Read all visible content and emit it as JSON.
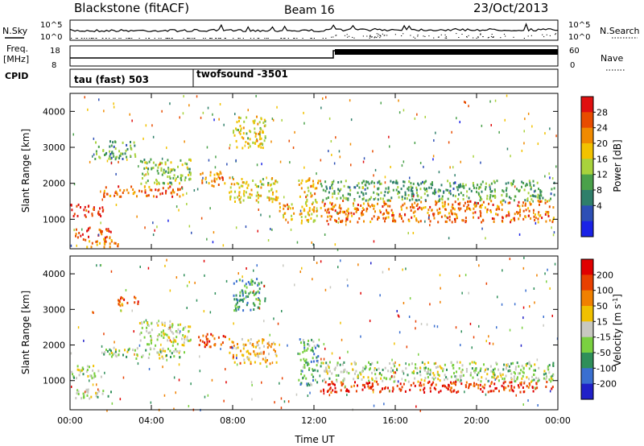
{
  "header": {
    "station": "Blackstone (fitACF)",
    "beam": "Beam 16",
    "date": "23/Oct/2013"
  },
  "params": {
    "left_top": "N.Sky",
    "left_freq_1": "Freq.",
    "left_freq_2": "[MHz]",
    "left_cpid": "CPID",
    "right_top": "N.Search",
    "right_nave": "Nave",
    "noise_ticks_left": [
      "10^5",
      "10^0"
    ],
    "noise_ticks_right": [
      "10^5",
      "10^0"
    ],
    "freq_ticks": [
      "18",
      "8"
    ],
    "nave_ticks": [
      "60",
      "0"
    ]
  },
  "cpid_segments": [
    {
      "label": "tau (fast) 503",
      "start_hour": 0,
      "end_hour": 6
    },
    {
      "label": "twofsound -3501",
      "start_hour": 6,
      "end_hour": 24
    }
  ],
  "chart_data": [
    {
      "type": "heatmap",
      "variable": "Power",
      "ylabel": "Slant Range [km]",
      "y_ticks": [
        1000,
        2000,
        3000,
        4000
      ],
      "ylim": [
        180,
        4500
      ],
      "xlim_hours": [
        0,
        24
      ],
      "colorbar_label": "Power [dB]",
      "colorbar_ticks": [
        "4",
        "8",
        "12",
        "16",
        "20",
        "24",
        "28"
      ],
      "colorbar_colors": [
        "#1a22e6",
        "#2d4fb5",
        "#2f7f6a",
        "#4aa14a",
        "#a8d23c",
        "#f2c200",
        "#f08a00",
        "#e84c00",
        "#e01010"
      ],
      "bands": [
        {
          "x0": 0.0,
          "x1": 1.6,
          "y0": 1100,
          "y1": 1450,
          "v": 0.95
        },
        {
          "x0": 1.6,
          "x1": 5.6,
          "y0": 1650,
          "y1": 1950,
          "v": 0.85
        },
        {
          "x0": 0.2,
          "x1": 2.0,
          "y0": 500,
          "y1": 800,
          "v": 0.9
        },
        {
          "x0": 0.6,
          "x1": 2.6,
          "y0": 250,
          "y1": 480,
          "v": 0.75
        },
        {
          "x0": 6.3,
          "x1": 7.6,
          "y0": 1950,
          "y1": 2350,
          "v": 0.75
        },
        {
          "x0": 7.8,
          "x1": 10.2,
          "y0": 1500,
          "y1": 2200,
          "v": 0.6
        },
        {
          "x0": 8.0,
          "x1": 9.6,
          "y0": 3000,
          "y1": 3900,
          "v": 0.55
        },
        {
          "x0": 10.2,
          "x1": 11.0,
          "y0": 1000,
          "y1": 1500,
          "v": 0.7
        },
        {
          "x0": 11.2,
          "x1": 12.2,
          "y0": 900,
          "y1": 2200,
          "v": 0.65
        },
        {
          "x0": 12.3,
          "x1": 23.8,
          "y0": 950,
          "y1": 1550,
          "v": 0.8
        },
        {
          "x0": 12.3,
          "x1": 23.8,
          "y0": 1550,
          "y1": 2100,
          "v": 0.35
        },
        {
          "x0": 3.4,
          "x1": 5.9,
          "y0": 2000,
          "y1": 2700,
          "v": 0.45
        },
        {
          "x0": 1.2,
          "x1": 3.2,
          "y0": 2700,
          "y1": 3200,
          "v": 0.35
        }
      ]
    },
    {
      "type": "heatmap",
      "variable": "Velocity",
      "ylabel": "Slant Range [km]",
      "xlabel": "Time UT",
      "y_ticks": [
        1000,
        2000,
        3000,
        4000
      ],
      "ylim": [
        180,
        4500
      ],
      "xlim_hours": [
        0,
        24
      ],
      "x_ticks": [
        "00:00",
        "04:00",
        "08:00",
        "12:00",
        "16:00",
        "20:00",
        "00:00"
      ],
      "colorbar_label": "Velocity [m s",
      "colorbar_label_sup": "-1",
      "colorbar_label_end": "]",
      "colorbar_ticks": [
        "200",
        "100",
        "50",
        "15",
        "-15",
        "-50",
        "-100",
        "-200"
      ],
      "colorbar_colors": [
        "#2020c8",
        "#3a6fd0",
        "#2f8f5a",
        "#7ad040",
        "#c8c8c0",
        "#f0c000",
        "#f08000",
        "#e84000",
        "#e00000"
      ],
      "bands": [
        {
          "x0": 0.0,
          "x1": 1.6,
          "y0": 1100,
          "y1": 1450,
          "v": 0.45
        },
        {
          "x0": 1.6,
          "x1": 5.6,
          "y0": 1650,
          "y1": 1950,
          "v": 0.45
        },
        {
          "x0": 0.2,
          "x1": 2.0,
          "y0": 500,
          "y1": 800,
          "v": 0.45
        },
        {
          "x0": 6.3,
          "x1": 7.6,
          "y0": 1950,
          "y1": 2350,
          "v": 0.85
        },
        {
          "x0": 7.8,
          "x1": 10.2,
          "y0": 1500,
          "y1": 2200,
          "v": 0.65
        },
        {
          "x0": 8.0,
          "x1": 9.6,
          "y0": 3000,
          "y1": 3900,
          "v": 0.25
        },
        {
          "x0": 11.2,
          "x1": 12.2,
          "y0": 900,
          "y1": 2200,
          "v": 0.3
        },
        {
          "x0": 12.3,
          "x1": 23.8,
          "y0": 1000,
          "y1": 1550,
          "v": 0.45
        },
        {
          "x0": 12.3,
          "x1": 23.8,
          "y0": 700,
          "y1": 1000,
          "v": 0.95
        },
        {
          "x0": 2.3,
          "x1": 3.4,
          "y0": 3100,
          "y1": 3400,
          "v": 0.8
        },
        {
          "x0": 3.4,
          "x1": 5.9,
          "y0": 2000,
          "y1": 2700,
          "v": 0.5
        }
      ]
    }
  ]
}
